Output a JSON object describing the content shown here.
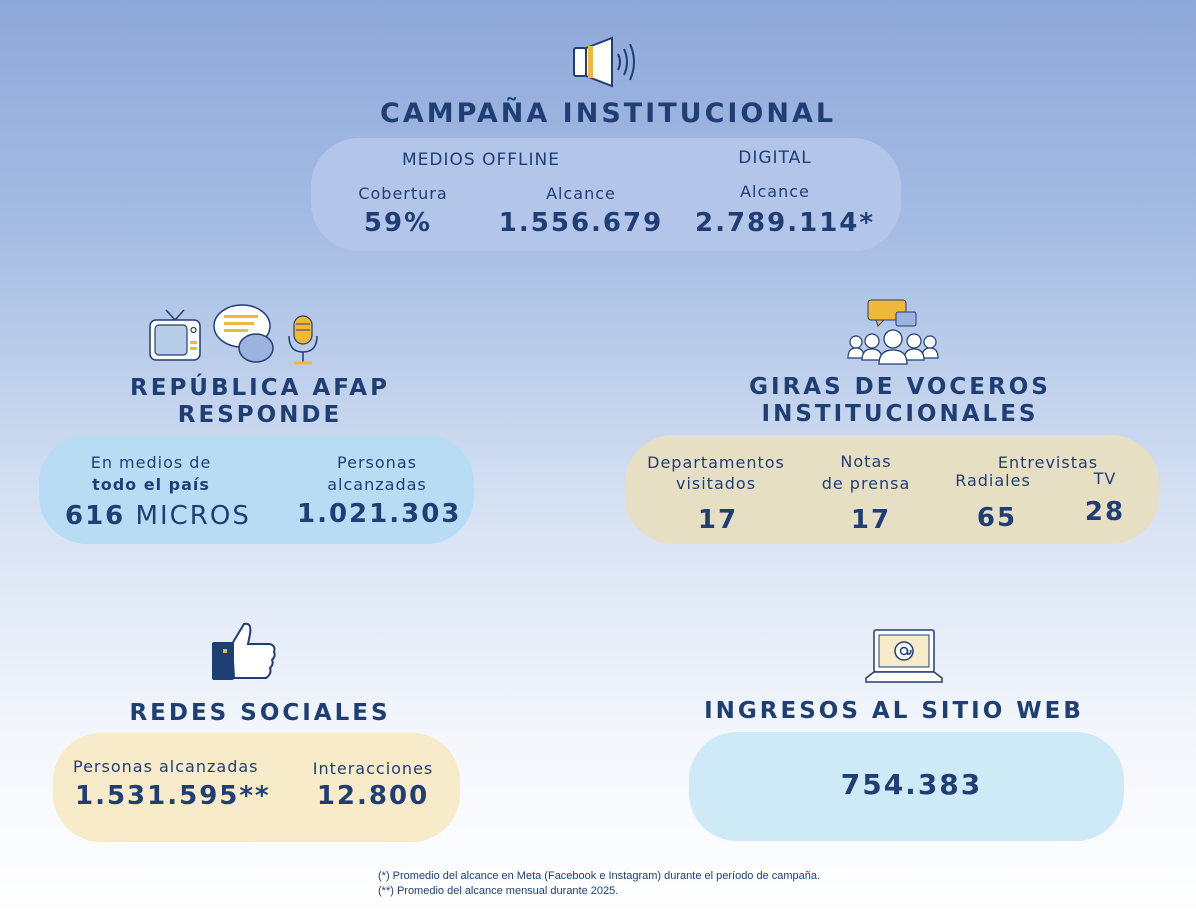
{
  "campaign": {
    "title": "CAMPAÑA INSTITUCIONAL",
    "offline_label": "MEDIOS OFFLINE",
    "digital_label": "DIGITAL",
    "cobertura_label": "Cobertura",
    "cobertura_value": "59%",
    "alcance_offline_label": "Alcance",
    "alcance_offline_value": "1.556.679",
    "alcance_digital_label": "Alcance",
    "alcance_digital_value": "2.789.114*"
  },
  "responde": {
    "title_line1": "REPÚBLICA AFAP",
    "title_line2": "RESPONDE",
    "medios_line1": "En medios de",
    "medios_line2": "todo el país",
    "micros_number": "616",
    "micros_unit": "MICROS",
    "personas_line1": "Personas",
    "personas_line2": "alcanzadas",
    "personas_value": "1.021.303"
  },
  "giras": {
    "title_line1": "GIRAS DE VOCEROS",
    "title_line2": "INSTITUCIONALES",
    "deptos_line1": "Departamentos",
    "deptos_line2": "visitados",
    "deptos_value": "17",
    "notas_line1": "Notas",
    "notas_line2": "de prensa",
    "notas_value": "17",
    "entrevistas_label": "Entrevistas",
    "radiales_label": "Radiales",
    "radiales_value": "65",
    "tv_label": "TV",
    "tv_value": "28"
  },
  "redes": {
    "title": "REDES SOCIALES",
    "personas_label": "Personas alcanzadas",
    "personas_value": "1.531.595**",
    "interacciones_label": "Interacciones",
    "interacciones_value": "12.800"
  },
  "web": {
    "title": "INGRESOS AL SITIO WEB",
    "value": "754.383"
  },
  "footnotes": {
    "note1": "(*) Promedio del alcance en Meta (Facebook e Instagram) durante el período de campaña.",
    "note2": "(**) Promedio del alcance mensual durante 2025."
  },
  "colors": {
    "navy": "#1f3f74",
    "accent_yellow": "#f2b83a",
    "pill_campaign": "#b3c5e8",
    "pill_responde": "#b7dcf3",
    "pill_giras": "#e7dfc4",
    "pill_redes": "#f8ebc9",
    "pill_web": "#cfeaf7"
  },
  "icons": [
    "speaker-icon",
    "tv-icon",
    "chat-bubbles-icon",
    "microphone-icon",
    "people-group-icon",
    "thumbs-up-icon",
    "laptop-at-icon"
  ]
}
